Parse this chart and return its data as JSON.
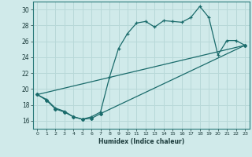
{
  "xlabel": "Humidex (Indice chaleur)",
  "bg_color": "#d0eaea",
  "grid_color": "#b8d8d8",
  "line_color": "#1a6b6b",
  "xlim": [
    -0.5,
    23.5
  ],
  "ylim": [
    15,
    31
  ],
  "xtick_labels": [
    "0",
    "1",
    "2",
    "3",
    "4",
    "5",
    "6",
    "7",
    "8",
    "9",
    "10",
    "11",
    "12",
    "13",
    "14",
    "15",
    "16",
    "17",
    "18",
    "19",
    "20",
    "21",
    "22",
    "23"
  ],
  "ytick_values": [
    16,
    18,
    20,
    22,
    24,
    26,
    28,
    30
  ],
  "series1_x": [
    0,
    1,
    2,
    3,
    4,
    5,
    6,
    7,
    8,
    9,
    10,
    11,
    12,
    13,
    14,
    15,
    16,
    17,
    18,
    19,
    20,
    21,
    22,
    23
  ],
  "series1_y": [
    19.3,
    18.7,
    17.6,
    17.2,
    16.5,
    16.2,
    16.5,
    17.1,
    21.5,
    25.1,
    27.0,
    28.3,
    28.5,
    27.8,
    28.6,
    28.5,
    28.4,
    29.0,
    30.4,
    29.0,
    24.3,
    26.1,
    26.1,
    25.5
  ],
  "series2_x": [
    0,
    23
  ],
  "series2_y": [
    19.3,
    25.5
  ],
  "series3_x": [
    0,
    1,
    2,
    3,
    4,
    5,
    6,
    7,
    23
  ],
  "series3_y": [
    19.3,
    18.6,
    17.5,
    17.1,
    16.5,
    16.2,
    16.3,
    16.9,
    25.5
  ]
}
